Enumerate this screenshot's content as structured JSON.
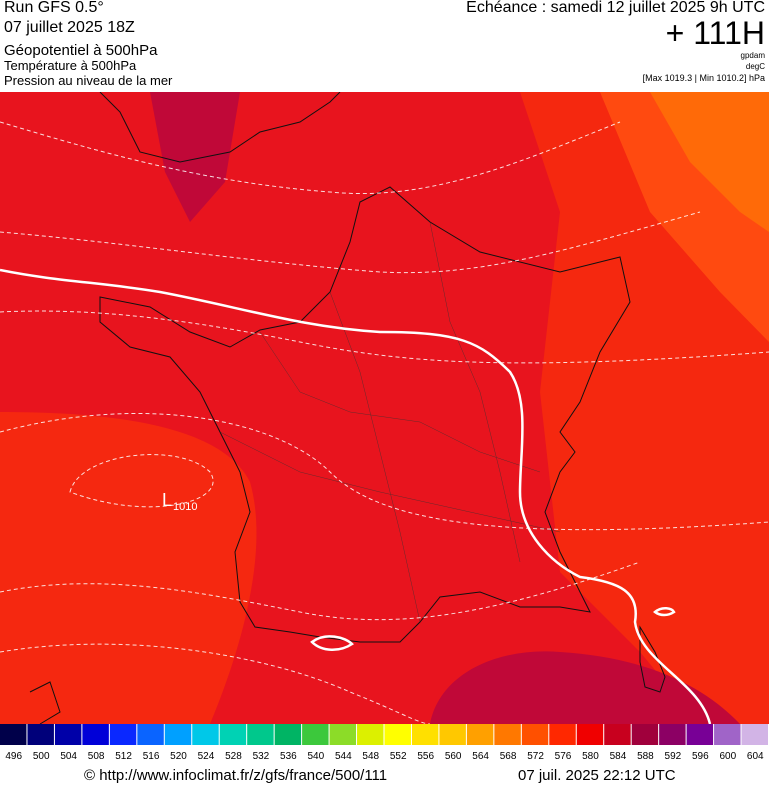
{
  "header": {
    "run": "Run GFS 0.5°",
    "run_date": "07 juillet 2025 18Z",
    "field1": "Géopotentiel à 500hPa",
    "field2": "Température à 500hPa",
    "field3": "Pression au niveau de la mer",
    "echeance": "Echéance : samedi 12 juillet 2025 9h UTC",
    "offset": "+ 111H",
    "unit1": "gpdam",
    "unit2": "degC",
    "unit3": "[Max 1019.3 | Min 1010.2] hPa"
  },
  "map": {
    "low_letter": "L",
    "low_value": "1010"
  },
  "colorbar": {
    "labels": [
      496,
      500,
      504,
      508,
      512,
      516,
      520,
      524,
      528,
      532,
      536,
      540,
      544,
      548,
      552,
      556,
      560,
      564,
      568,
      572,
      576,
      580,
      584,
      588,
      592,
      596,
      600,
      604
    ],
    "colors": [
      "#00004a",
      "#00007a",
      "#0000a8",
      "#0000d8",
      "#0a28ff",
      "#0a64ff",
      "#00a0ff",
      "#00c8e8",
      "#00d2b4",
      "#00c88c",
      "#00b464",
      "#3cc83c",
      "#8cdc28",
      "#dcf000",
      "#ffff00",
      "#ffe000",
      "#ffc800",
      "#ffa000",
      "#ff7800",
      "#ff5000",
      "#ff2800",
      "#f00000",
      "#c8001e",
      "#a0003c",
      "#8c0064",
      "#780096",
      "#a064c8",
      "#d2b4e6"
    ]
  },
  "footer": {
    "url": "© http://www.infoclimat.fr/z/gfs/france/500/111",
    "timestamp": "07 juil. 2025 22:12 UTC"
  }
}
